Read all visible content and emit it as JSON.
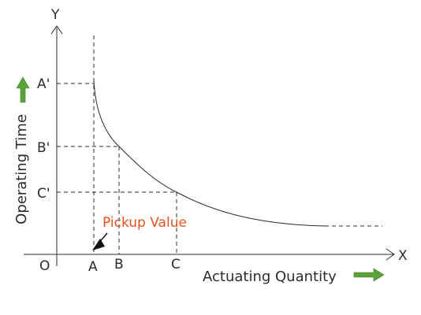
{
  "diagram": {
    "axis_x_letter": "X",
    "axis_y_letter": "Y",
    "origin_label": "O",
    "x_points": [
      "A",
      "B",
      "C"
    ],
    "y_points": [
      "A'",
      "B'",
      "C'"
    ],
    "x_axis_title": "Actuating Quantity",
    "y_axis_title": "Operating Time",
    "annotation": "Pickup Value",
    "colors": {
      "line": "#2b2b2b",
      "annotation": "#e8501e",
      "arrow": "#5aa33a",
      "pointer": "#111111"
    }
  }
}
